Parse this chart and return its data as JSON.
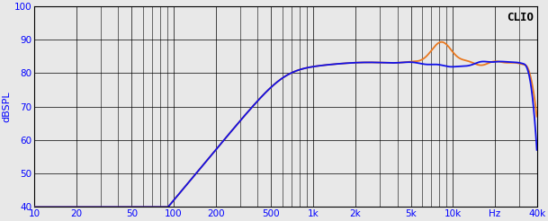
{
  "title": "CLIO",
  "ylabel": "dBSPL",
  "xmin": 10,
  "xmax": 40000,
  "ymin": 40,
  "ymax": 100,
  "yticks": [
    40,
    50,
    60,
    70,
    80,
    90,
    100
  ],
  "xtick_labels": [
    "10",
    "20",
    "50",
    "100",
    "200",
    "500",
    "1k",
    "2k",
    "5k",
    "10k",
    "Hz",
    "40k"
  ],
  "xtick_values": [
    10,
    20,
    50,
    100,
    200,
    500,
    1000,
    2000,
    5000,
    10000,
    20000,
    40000
  ],
  "blue_color": "#1010e8",
  "orange_color": "#e87820",
  "background_color": "#e8e8e8",
  "line_width": 1.3,
  "grid_color": "#000000"
}
